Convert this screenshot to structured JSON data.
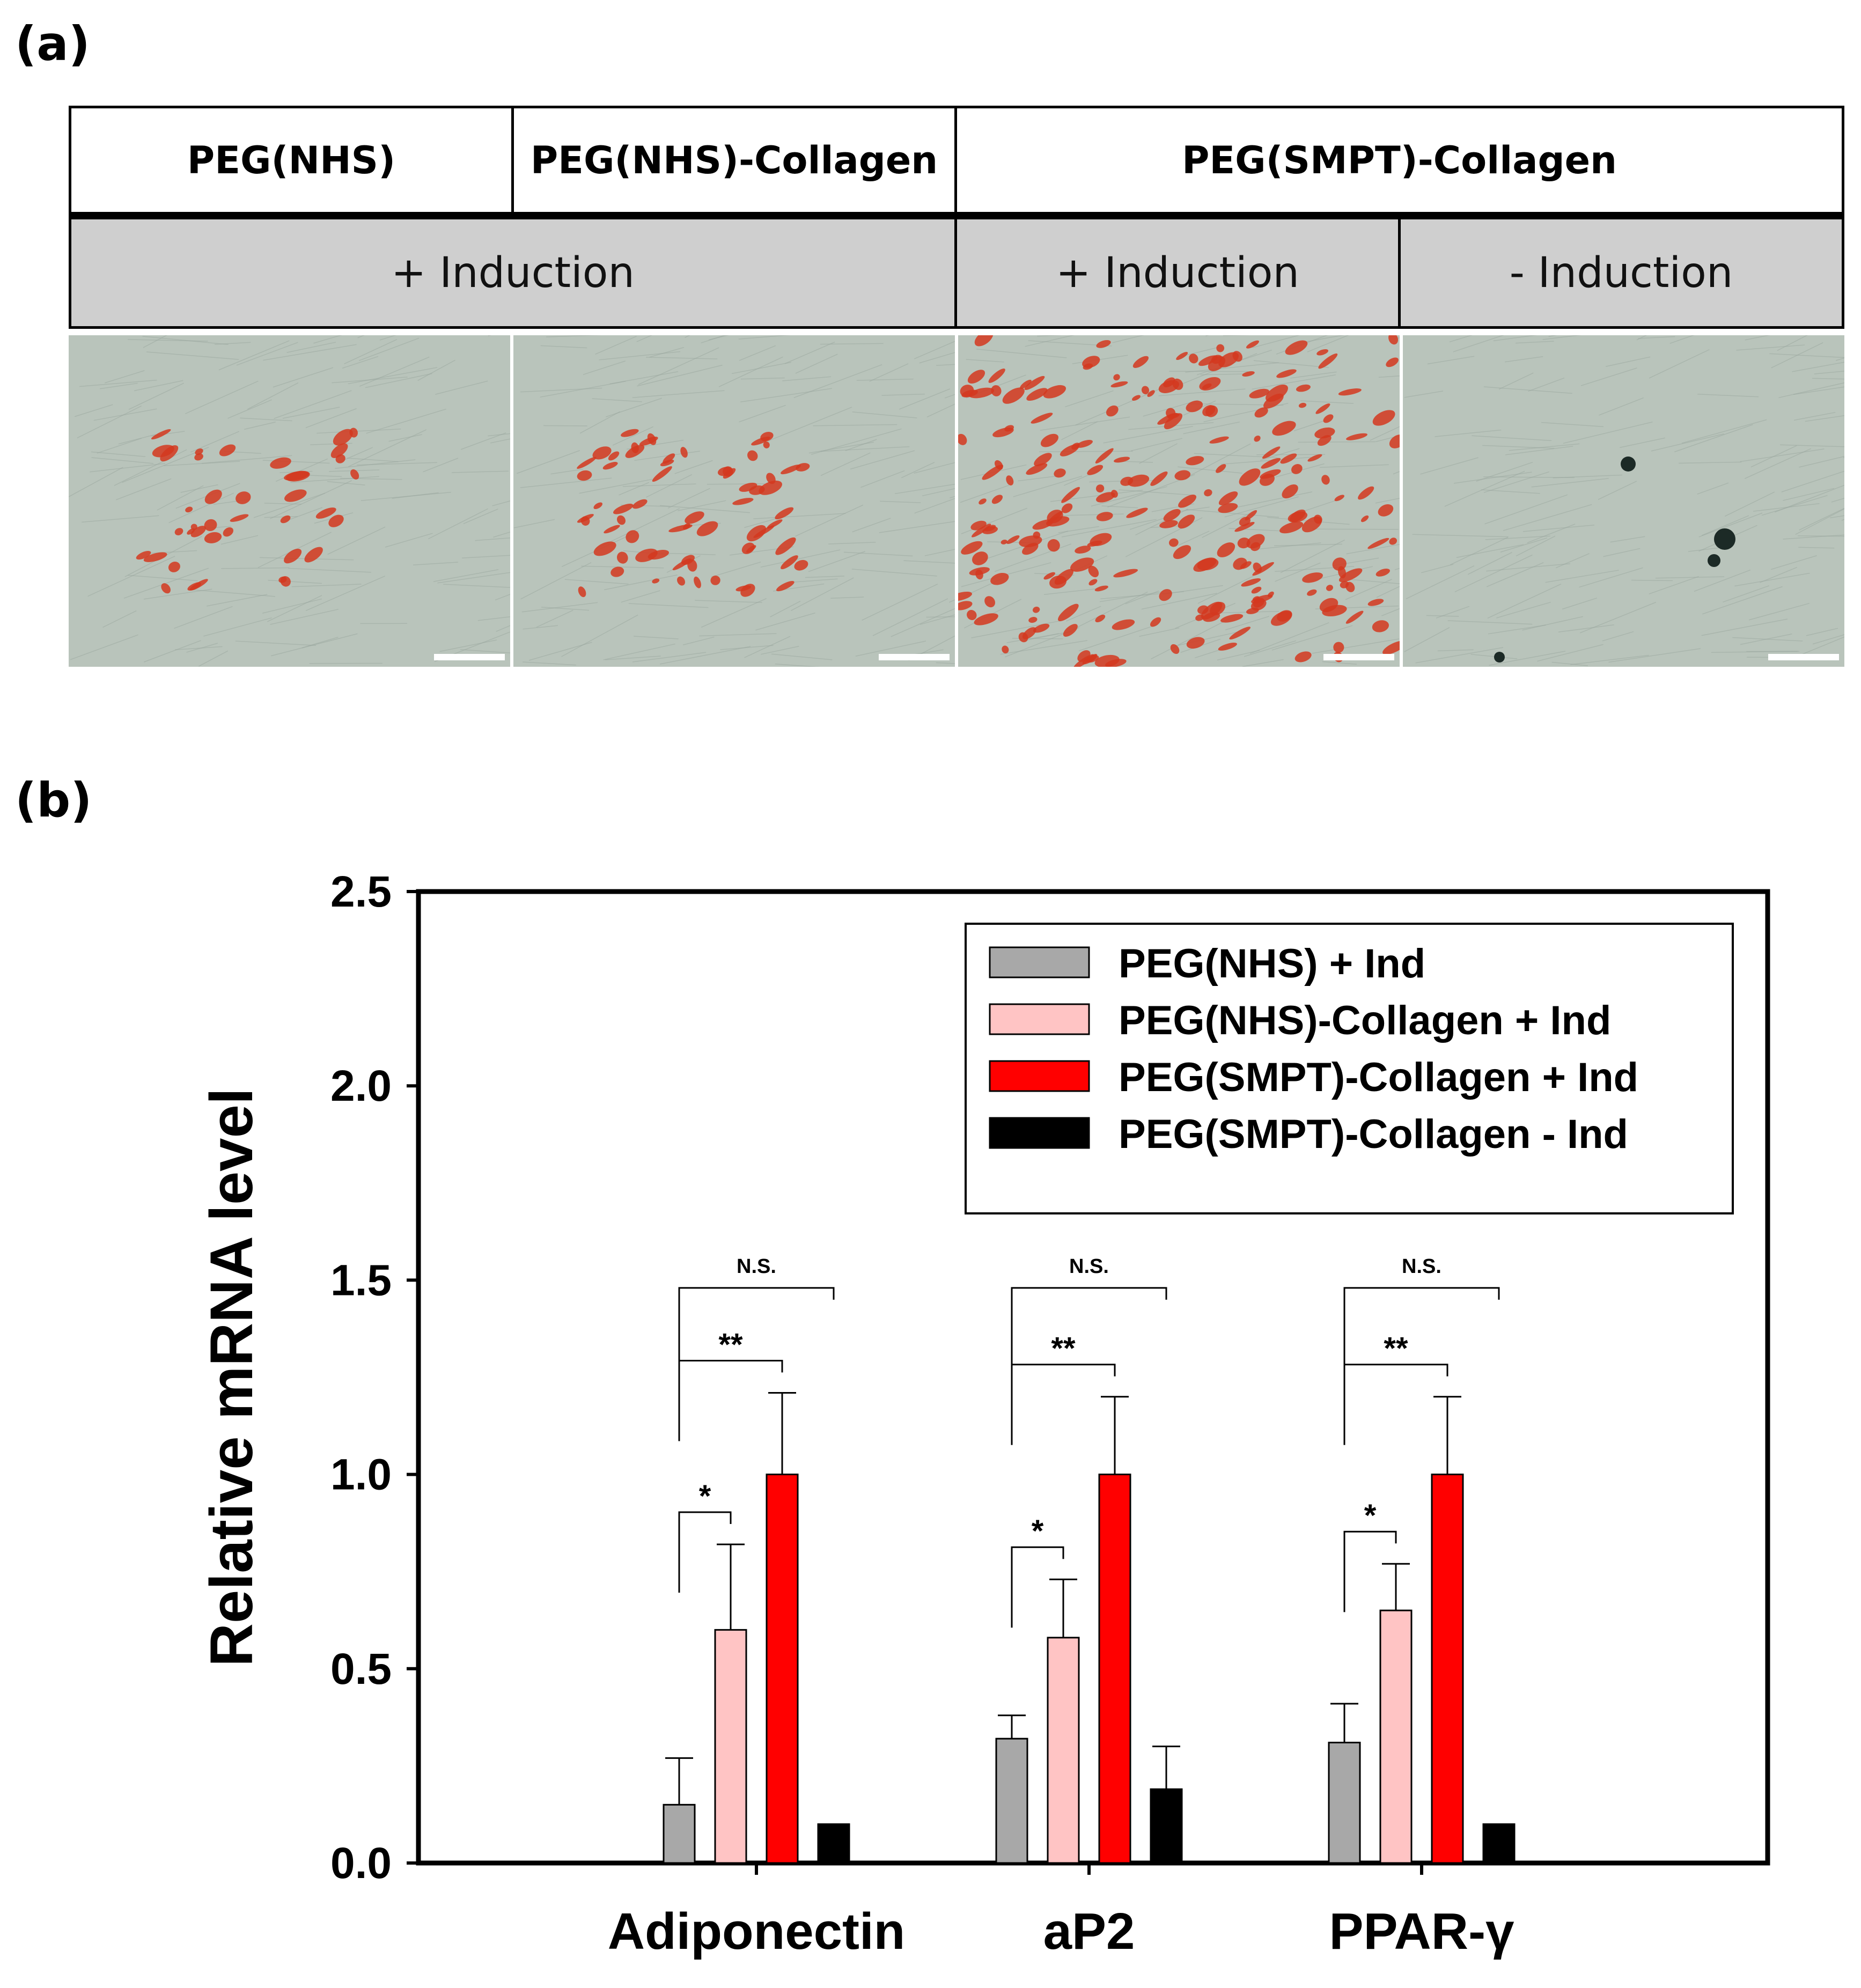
{
  "panel_a": {
    "label": "(a)",
    "header": {
      "groups": [
        "PEG(NHS)",
        "PEG(NHS)-Collagen",
        "PEG(SMPT)-Collagen"
      ],
      "conditions": [
        "+ Induction",
        "+ Induction",
        "- Induction"
      ]
    },
    "images": [
      {
        "group": "PEG(NHS)",
        "stain_level": 0.15
      },
      {
        "group": "PEG(NHS)-Collagen",
        "stain_level": 0.25
      },
      {
        "group": "PEG(SMPT)-Collagen + Induction",
        "stain_level": 0.9
      },
      {
        "group": "PEG(SMPT)-Collagen - Induction",
        "stain_level": 0.0
      }
    ],
    "colors": {
      "tissue": "#b9c4bb",
      "stain": "#d4381f",
      "header_gray": "#cfcfcf"
    }
  },
  "panel_b": {
    "label": "(b)"
  },
  "chart_data": {
    "type": "bar",
    "title": "",
    "xlabel": "",
    "ylabel": "Relative mRNA level",
    "ylim": [
      0,
      2.5
    ],
    "yticks": [
      "0.0",
      "0.5",
      "1.0",
      "1.5",
      "2.0",
      "2.5"
    ],
    "categories": [
      "Adiponectin",
      "aP2",
      "PPAR-γ"
    ],
    "series": [
      {
        "name": "PEG(NHS) + Ind",
        "color": "#a8a8a8",
        "values": [
          0.15,
          0.32,
          0.31
        ],
        "errors": [
          0.12,
          0.06,
          0.1
        ]
      },
      {
        "name": "PEG(NHS)-Collagen + Ind",
        "color": "#ffc4c4",
        "values": [
          0.6,
          0.58,
          0.65
        ],
        "errors": [
          0.22,
          0.15,
          0.12
        ]
      },
      {
        "name": "PEG(SMPT)-Collagen + Ind",
        "color": "#ff0000",
        "values": [
          1.0,
          1.0,
          1.0
        ],
        "errors": [
          0.21,
          0.2,
          0.2
        ]
      },
      {
        "name": "PEG(SMPT)-Collagen - Ind",
        "color": "#000000",
        "values": [
          0.1,
          0.19,
          0.1
        ],
        "errors": [
          0.0,
          0.11,
          0.0
        ]
      }
    ],
    "legend_position": "top-right",
    "significance": [
      {
        "category": "Adiponectin",
        "marks": [
          "*",
          "**",
          "N.S."
        ]
      },
      {
        "category": "aP2",
        "marks": [
          "*",
          "**",
          "N.S."
        ]
      },
      {
        "category": "PPAR-γ",
        "marks": [
          "*",
          "**",
          "N.S."
        ]
      }
    ],
    "grid": false
  }
}
